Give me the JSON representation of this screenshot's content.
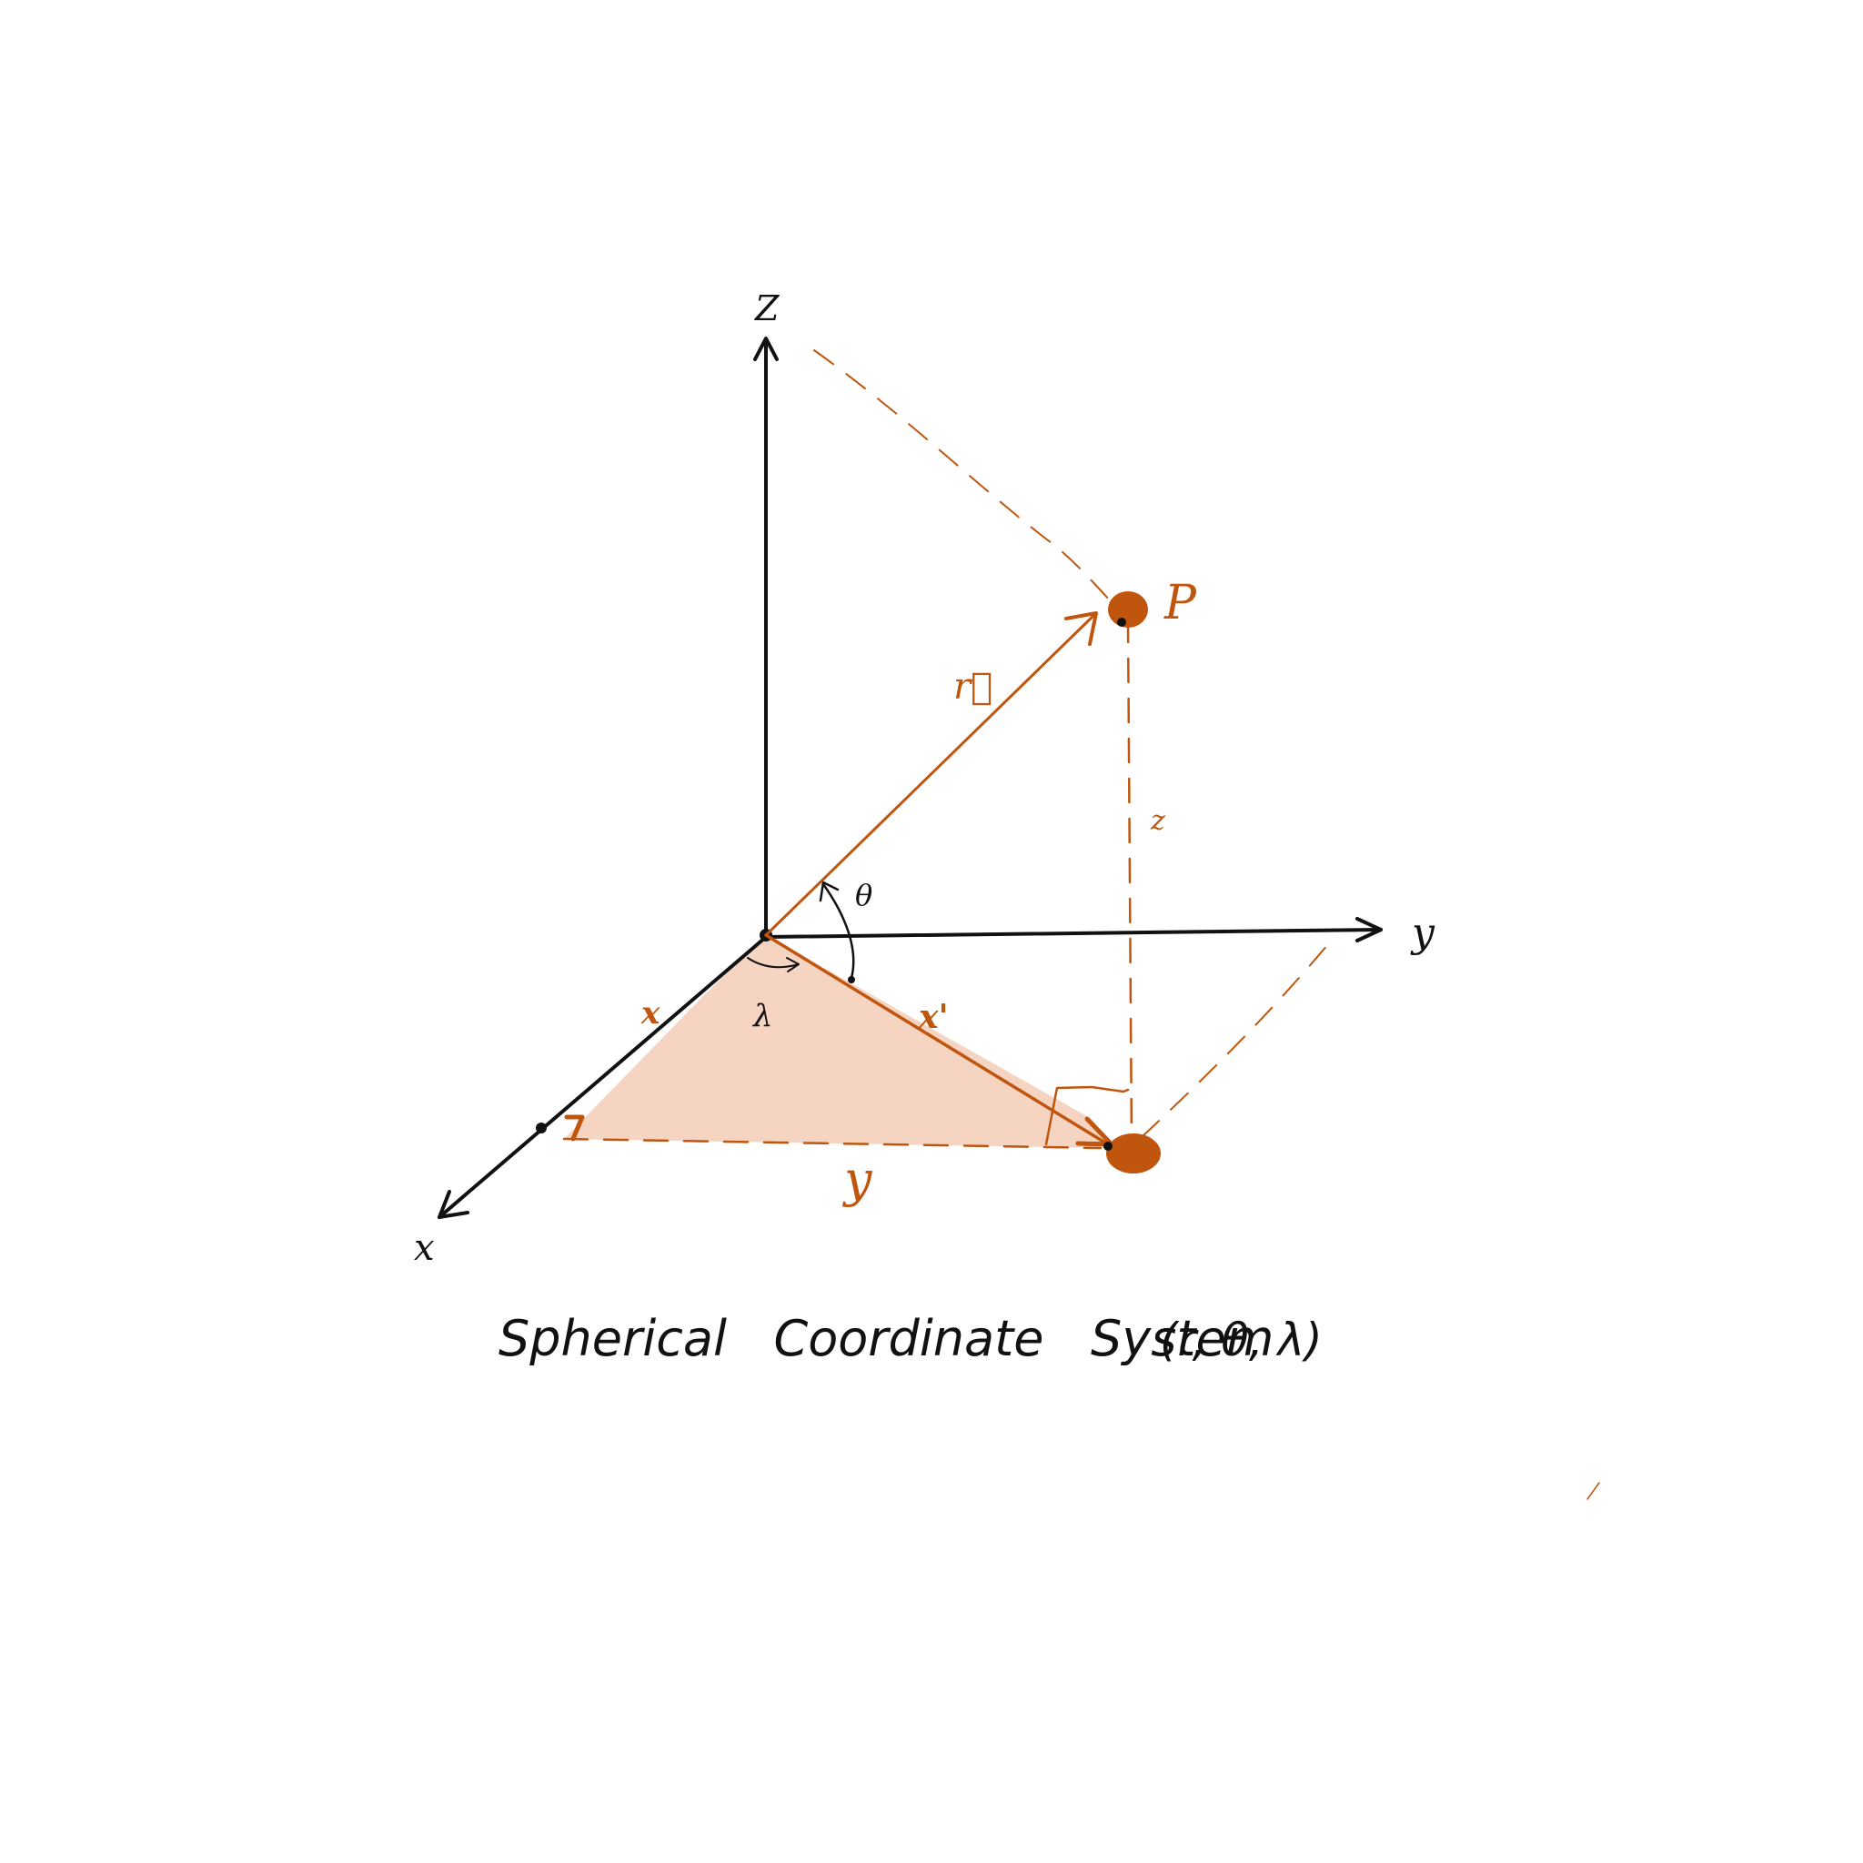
{
  "colors": {
    "accent": "#c0550e",
    "ink": "#111111",
    "shade": "#f2c7ad"
  },
  "axes": {
    "z_label": "Z",
    "y_label": "y",
    "x_label": "x"
  },
  "labels": {
    "point": "P",
    "vector": "r⃗",
    "theta": "θ",
    "lambda": "λ",
    "x_segment": "x",
    "projection": "x'",
    "y_segment": "y",
    "z_height": "z"
  },
  "caption": {
    "title": "Spherical   Coordinate   System",
    "tuple": "(r, θ, λ)"
  }
}
